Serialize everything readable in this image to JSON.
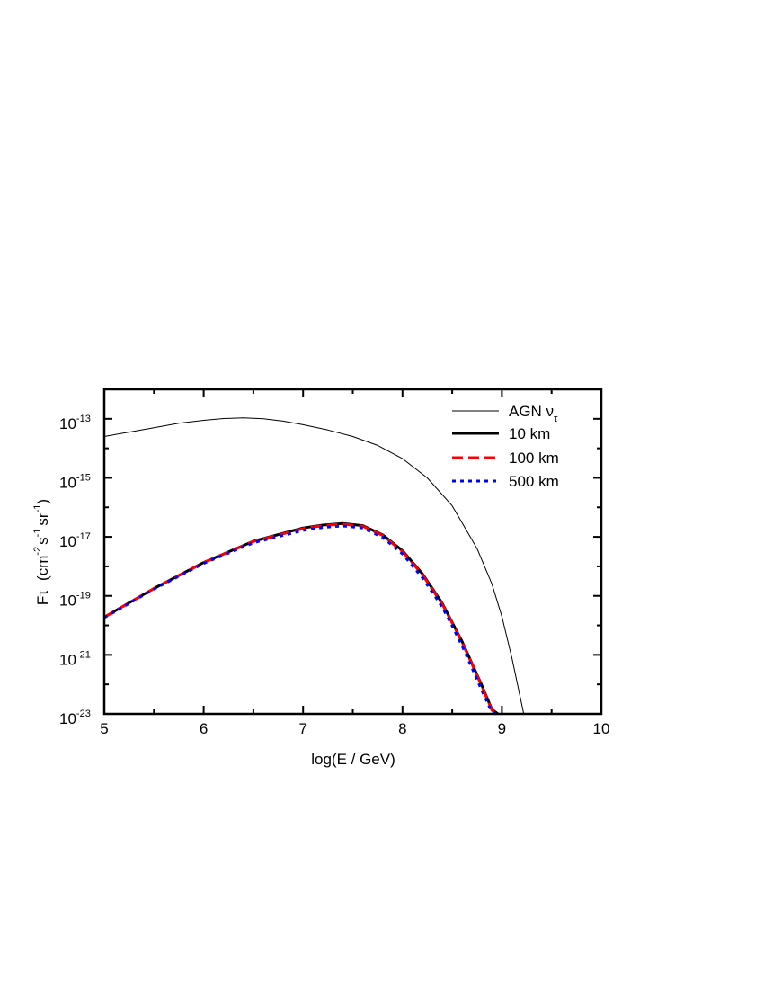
{
  "chart_data": {
    "type": "line",
    "xlabel": "log(E / GeV)",
    "ylabel_parts": {
      "name": "Fτ",
      "unit_open": "(cm",
      "cm_exp": "-2",
      "s_unit": "s",
      "s_exp": "-1",
      "sr_unit": "sr",
      "sr_exp": "-1",
      "unit_close": ")"
    },
    "xlim": [
      5,
      10
    ],
    "ylim_log10": [
      -23,
      -12
    ],
    "y_scale": "log",
    "x_ticks": [
      "5",
      "6",
      "7",
      "8",
      "9",
      "10"
    ],
    "y_tick_base": "10",
    "y_tick_exponents": [
      "-13",
      "-15",
      "-17",
      "-19",
      "-21",
      "-23"
    ],
    "legend_position": "top-right",
    "series": [
      {
        "name_main": "AGN ν",
        "name_sub": "τ",
        "color": "#000000",
        "style": "thin-solid",
        "x": [
          5.0,
          5.25,
          5.5,
          5.75,
          6.0,
          6.2,
          6.4,
          6.6,
          6.8,
          7.0,
          7.25,
          7.5,
          7.75,
          8.0,
          8.25,
          8.5,
          8.75,
          8.9,
          9.0,
          9.1,
          9.22
        ],
        "log10_y": [
          -13.6,
          -13.45,
          -13.3,
          -13.15,
          -13.05,
          -12.99,
          -12.97,
          -13.0,
          -13.08,
          -13.2,
          -13.38,
          -13.6,
          -13.9,
          -14.35,
          -15.0,
          -15.95,
          -17.4,
          -18.6,
          -19.7,
          -21.1,
          -23.0
        ]
      },
      {
        "name": "10 km",
        "color": "#000000",
        "style": "thick-solid",
        "x": [
          5.0,
          5.5,
          6.0,
          6.5,
          7.0,
          7.2,
          7.4,
          7.6,
          7.8,
          8.0,
          8.2,
          8.4,
          8.5,
          8.6,
          8.7,
          8.8,
          8.9,
          8.96
        ],
        "log10_y": [
          -19.72,
          -18.75,
          -17.87,
          -17.15,
          -16.7,
          -16.6,
          -16.55,
          -16.62,
          -16.93,
          -17.47,
          -18.25,
          -19.25,
          -19.9,
          -20.55,
          -21.3,
          -22.05,
          -22.85,
          -23.0
        ]
      },
      {
        "name": "100 km",
        "color": "#ff0000",
        "style": "dashed",
        "x": [
          5.0,
          5.5,
          6.0,
          6.5,
          7.0,
          7.2,
          7.4,
          7.6,
          7.8,
          8.0,
          8.2,
          8.4,
          8.5,
          8.6,
          8.7,
          8.8,
          8.9,
          8.96
        ],
        "log10_y": [
          -19.72,
          -18.75,
          -17.87,
          -17.16,
          -16.72,
          -16.62,
          -16.57,
          -16.64,
          -16.95,
          -17.5,
          -18.28,
          -19.28,
          -19.92,
          -20.58,
          -21.32,
          -22.08,
          -22.88,
          -23.0
        ]
      },
      {
        "name": "500 km",
        "color": "#0000ff",
        "style": "dotted",
        "x": [
          5.0,
          5.5,
          6.0,
          6.5,
          7.0,
          7.2,
          7.4,
          7.6,
          7.8,
          8.0,
          8.2,
          8.4,
          8.5,
          8.6,
          8.7,
          8.8,
          8.9,
          8.94
        ],
        "log10_y": [
          -19.74,
          -18.77,
          -17.9,
          -17.2,
          -16.78,
          -16.68,
          -16.63,
          -16.7,
          -17.02,
          -17.58,
          -18.38,
          -19.38,
          -20.02,
          -20.7,
          -21.45,
          -22.22,
          -22.95,
          -23.0
        ]
      }
    ]
  }
}
